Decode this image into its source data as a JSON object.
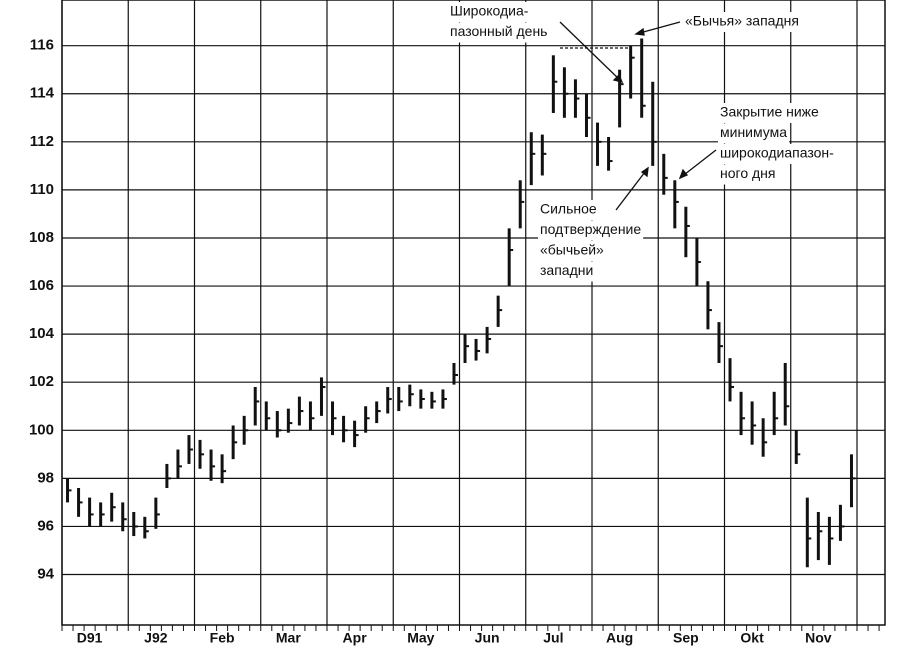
{
  "chart_data": {
    "type": "hlc",
    "categories": [
      null,
      null,
      "D91",
      null,
      null,
      null,
      null,
      null,
      "J92",
      null,
      null,
      null,
      null,
      null,
      "Feb",
      null,
      null,
      null,
      null,
      null,
      "Mar",
      null,
      null,
      null,
      null,
      null,
      "Apr",
      null,
      null,
      null,
      null,
      null,
      "May",
      null,
      null,
      null,
      null,
      null,
      "Jun",
      null,
      null,
      null,
      null,
      null,
      "Jul",
      null,
      null,
      null,
      null,
      null,
      "Aug",
      null,
      null,
      null,
      null,
      null,
      "Sep",
      null,
      null,
      null,
      null,
      null,
      "Okt",
      null,
      null,
      null,
      null,
      null,
      "Nov",
      null,
      null,
      null
    ],
    "high": [
      98,
      97.6,
      97.2,
      97.0,
      97.4,
      97.0,
      96.6,
      96.4,
      97.2,
      98.6,
      99.2,
      99.8,
      99.6,
      99.2,
      99,
      100.2,
      100.6,
      101.8,
      101.2,
      100.8,
      100.9,
      101.4,
      101.2,
      102.2,
      101.2,
      100.6,
      100.4,
      101,
      101.2,
      101.8,
      101.8,
      101.9,
      101.7,
      101.6,
      101.7,
      102.8,
      104,
      103.8,
      104.3,
      105.6,
      108.4,
      110.4,
      112.4,
      112.3,
      115.6,
      115.1,
      114.6,
      114,
      112.8,
      112.2,
      115,
      116,
      116.3,
      114.5,
      111.5,
      110.4,
      109.3,
      108,
      106.2,
      104.5,
      103,
      101.6,
      101.2,
      100.5,
      101.6,
      102.8,
      100,
      97.2,
      96.6,
      96.4,
      96.9,
      99
    ],
    "low": [
      97,
      96.4,
      96,
      96,
      96.2,
      95.8,
      95.6,
      95.5,
      95.9,
      97.6,
      98,
      98.6,
      98.4,
      97.9,
      97.8,
      98.8,
      99.4,
      100.2,
      100,
      99.7,
      99.9,
      100.2,
      100,
      100.6,
      99.8,
      99.5,
      99.3,
      99.9,
      100.3,
      100.7,
      100.8,
      101,
      100.9,
      100.9,
      100.9,
      101.9,
      102.8,
      102.9,
      103.2,
      104.3,
      106,
      108.4,
      110.2,
      110.6,
      113.2,
      113,
      113,
      112.2,
      111,
      110.8,
      112.6,
      113.8,
      113,
      111,
      109.8,
      108.4,
      107.2,
      106,
      104.2,
      102.8,
      101.2,
      99.8,
      99.4,
      98.9,
      99.8,
      100.2,
      98.6,
      94.3,
      94.6,
      94.4,
      95.4,
      96.8
    ],
    "close": [
      97.5,
      97,
      96.5,
      96.5,
      96.8,
      96.3,
      96,
      95.8,
      96.5,
      98,
      98.5,
      99.2,
      99,
      98.5,
      98.3,
      99.5,
      100,
      101.2,
      100.5,
      100,
      100.3,
      100.8,
      100.5,
      101.8,
      100.5,
      100,
      99.8,
      100.5,
      100.8,
      101.3,
      101.2,
      101.5,
      101.3,
      101.2,
      101.3,
      102.3,
      103.5,
      103.3,
      103.8,
      105,
      107.5,
      109.5,
      111.5,
      111.5,
      114.5,
      114,
      113.8,
      113,
      112,
      111.2,
      114.4,
      115.5,
      113.5,
      112,
      110.5,
      109.5,
      108.5,
      107,
      105,
      103.5,
      101.8,
      100.5,
      100.2,
      99.5,
      100.5,
      101,
      99,
      95.5,
      95.8,
      95.5,
      96,
      98
    ],
    "color": "#111111",
    "ylim": [
      91.9,
      117.9
    ],
    "yticks": [
      94,
      96,
      98,
      100,
      102,
      104,
      106,
      108,
      110,
      112,
      114,
      116
    ],
    "grid": true,
    "annotations": [
      {
        "lines": [
          "Широкодиа-",
          "пазонный день"
        ]
      },
      {
        "lines": [
          "«Бычья» западня"
        ]
      },
      {
        "lines": [
          "Закрытие ниже",
          "минимума",
          "широкодиапазон-",
          "ного дня"
        ]
      },
      {
        "lines": [
          "Сильное",
          "подтверждение",
          "«бычьей»",
          "западни"
        ]
      }
    ]
  }
}
